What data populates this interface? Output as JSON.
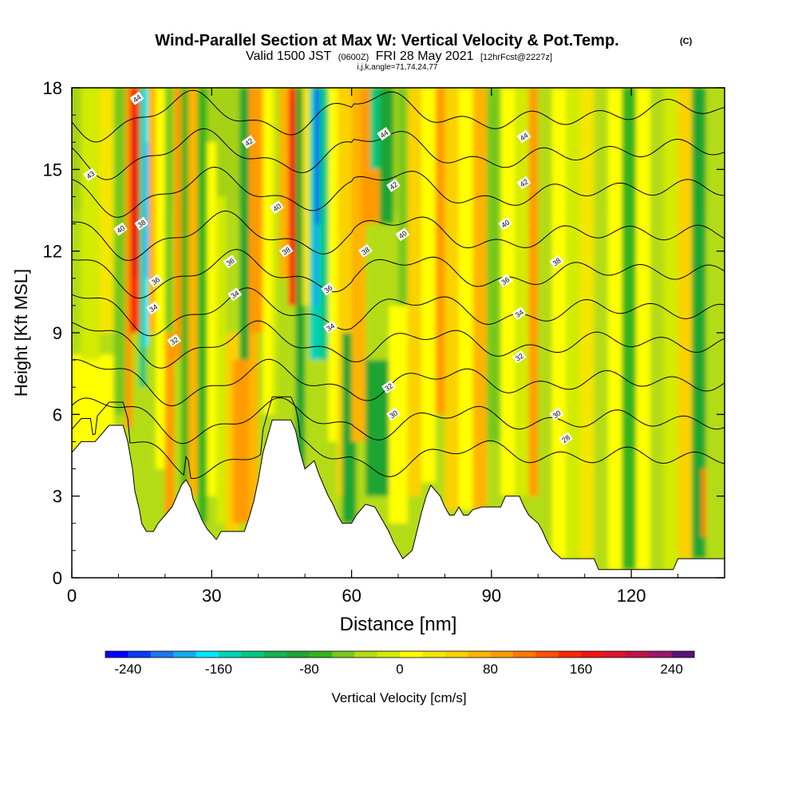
{
  "chart_data": {
    "type": "heatmap",
    "title": "Wind-Parallel Section at Max W: Vertical Velocity & Pot.Temp.",
    "title_mark": "(C)",
    "subtitle": {
      "valid": "Valid 1500 JST",
      "utc": "(0600Z)",
      "date": "FRI 28 May 2021",
      "fcst": "[12hrFcst@2227z]"
    },
    "info": "i,j,k,angle=71,74,24,77",
    "xlabel": "Distance [nm]",
    "ylabel": "Height [Kft MSL]",
    "x_ticks": [
      "0",
      "30",
      "60",
      "90",
      "120"
    ],
    "y_ticks": [
      "0",
      "3",
      "6",
      "9",
      "12",
      "15",
      "18"
    ],
    "xlim": [
      0,
      140
    ],
    "ylim": [
      0,
      18
    ],
    "colorbar": {
      "label": "Vertical Velocity [cm/s]",
      "ticks": [
        "-240",
        "-160",
        "-80",
        "0",
        "80",
        "160",
        "240"
      ],
      "range": [
        -260,
        260
      ],
      "colors": [
        "#0000ff",
        "#0a3cf5",
        "#1a78f0",
        "#14aaf0",
        "#00e6ff",
        "#00d2b4",
        "#00c87d",
        "#14b450",
        "#1ea532",
        "#32b41e",
        "#78c81e",
        "#b4dc14",
        "#d2eb00",
        "#ffff00",
        "#f5e600",
        "#fad200",
        "#ffb400",
        "#ff9b00",
        "#ff7800",
        "#ff5000",
        "#ff2800",
        "#f01414",
        "#dc1432",
        "#be1446",
        "#a0146e",
        "#5a1478"
      ]
    },
    "terrain": [
      {
        "x": 0,
        "h": 4.6
      },
      {
        "x": 2,
        "h": 5.0
      },
      {
        "x": 5,
        "h": 5.0
      },
      {
        "x": 7,
        "h": 5.4
      },
      {
        "x": 8,
        "h": 5.6
      },
      {
        "x": 11,
        "h": 5.6
      },
      {
        "x": 12,
        "h": 5.0
      },
      {
        "x": 13,
        "h": 4.0
      },
      {
        "x": 13.5,
        "h": 3.2
      },
      {
        "x": 14.5,
        "h": 2.5
      },
      {
        "x": 15,
        "h": 2.0
      },
      {
        "x": 16,
        "h": 1.7
      },
      {
        "x": 17.5,
        "h": 1.7
      },
      {
        "x": 18.5,
        "h": 2.0
      },
      {
        "x": 20,
        "h": 2.3
      },
      {
        "x": 21.5,
        "h": 2.6
      },
      {
        "x": 22.5,
        "h": 3.0
      },
      {
        "x": 23.5,
        "h": 3.4
      },
      {
        "x": 24.5,
        "h": 3.6
      },
      {
        "x": 25.5,
        "h": 3.3
      },
      {
        "x": 26,
        "h": 2.9
      },
      {
        "x": 27,
        "h": 2.5
      },
      {
        "x": 28,
        "h": 2.1
      },
      {
        "x": 29,
        "h": 1.8
      },
      {
        "x": 31,
        "h": 1.4
      },
      {
        "x": 32,
        "h": 1.7
      },
      {
        "x": 37,
        "h": 1.7
      },
      {
        "x": 38,
        "h": 2.2
      },
      {
        "x": 39,
        "h": 2.8
      },
      {
        "x": 40,
        "h": 3.6
      },
      {
        "x": 41,
        "h": 4.6
      },
      {
        "x": 42,
        "h": 5.2
      },
      {
        "x": 43,
        "h": 5.8
      },
      {
        "x": 47,
        "h": 5.8
      },
      {
        "x": 48,
        "h": 5.4
      },
      {
        "x": 49,
        "h": 4.6
      },
      {
        "x": 50,
        "h": 4.0
      },
      {
        "x": 52,
        "h": 4.3
      },
      {
        "x": 53,
        "h": 3.8
      },
      {
        "x": 54,
        "h": 3.4
      },
      {
        "x": 55,
        "h": 3.0
      },
      {
        "x": 56,
        "h": 2.7
      },
      {
        "x": 57,
        "h": 2.3
      },
      {
        "x": 58,
        "h": 2.0
      },
      {
        "x": 60,
        "h": 2.0
      },
      {
        "x": 61,
        "h": 2.3
      },
      {
        "x": 63,
        "h": 2.7
      },
      {
        "x": 65,
        "h": 2.6
      },
      {
        "x": 66,
        "h": 2.3
      },
      {
        "x": 67,
        "h": 2.0
      },
      {
        "x": 68,
        "h": 1.7
      },
      {
        "x": 69,
        "h": 1.3
      },
      {
        "x": 70,
        "h": 1.0
      },
      {
        "x": 71,
        "h": 0.7
      },
      {
        "x": 73,
        "h": 1.0
      },
      {
        "x": 74,
        "h": 1.7
      },
      {
        "x": 75,
        "h": 2.4
      },
      {
        "x": 76,
        "h": 3.0
      },
      {
        "x": 77,
        "h": 3.4
      },
      {
        "x": 78,
        "h": 3.2
      },
      {
        "x": 79,
        "h": 3.0
      },
      {
        "x": 80,
        "h": 2.6
      },
      {
        "x": 81,
        "h": 2.3
      },
      {
        "x": 82,
        "h": 2.3
      },
      {
        "x": 83,
        "h": 2.6
      },
      {
        "x": 84,
        "h": 2.3
      },
      {
        "x": 85,
        "h": 2.3
      },
      {
        "x": 86,
        "h": 2.5
      },
      {
        "x": 88,
        "h": 2.6
      },
      {
        "x": 90,
        "h": 2.6
      },
      {
        "x": 92,
        "h": 2.6
      },
      {
        "x": 93,
        "h": 3.0
      },
      {
        "x": 96,
        "h": 3.0
      },
      {
        "x": 97,
        "h": 2.6
      },
      {
        "x": 98,
        "h": 2.3
      },
      {
        "x": 100,
        "h": 2.0
      },
      {
        "x": 101,
        "h": 1.7
      },
      {
        "x": 102,
        "h": 1.3
      },
      {
        "x": 103,
        "h": 1.0
      },
      {
        "x": 105,
        "h": 0.7
      },
      {
        "x": 112,
        "h": 0.7
      },
      {
        "x": 113,
        "h": 0.3
      },
      {
        "x": 122,
        "h": 0.3
      },
      {
        "x": 129,
        "h": 0.3
      },
      {
        "x": 130,
        "h": 0.7
      },
      {
        "x": 140,
        "h": 0.7
      }
    ],
    "theta_levels": [
      28,
      30,
      32,
      34,
      36,
      38,
      40,
      42,
      44
    ],
    "theta_label_positions": [
      {
        "text": "44",
        "x": 14,
        "y": 17.6
      },
      {
        "text": "44",
        "x": 67,
        "y": 16.3
      },
      {
        "text": "44",
        "x": 97,
        "y": 16.2
      },
      {
        "text": "43",
        "x": 4,
        "y": 14.8
      },
      {
        "text": "42",
        "x": 38,
        "y": 16.0
      },
      {
        "text": "42",
        "x": 69,
        "y": 14.4
      },
      {
        "text": "42",
        "x": 97,
        "y": 14.5
      },
      {
        "text": "40",
        "x": 10.5,
        "y": 12.8
      },
      {
        "text": "38",
        "x": 15,
        "y": 13.0
      },
      {
        "text": "40",
        "x": 44,
        "y": 13.6
      },
      {
        "text": "40",
        "x": 71,
        "y": 12.6
      },
      {
        "text": "40",
        "x": 93,
        "y": 13.0
      },
      {
        "text": "38",
        "x": 46,
        "y": 12.0
      },
      {
        "text": "38",
        "x": 63,
        "y": 12.0
      },
      {
        "text": "38",
        "x": 104,
        "y": 11.6
      },
      {
        "text": "36",
        "x": 34,
        "y": 11.6
      },
      {
        "text": "36",
        "x": 18,
        "y": 10.9
      },
      {
        "text": "36",
        "x": 55,
        "y": 10.6
      },
      {
        "text": "36",
        "x": 93,
        "y": 10.9
      },
      {
        "text": "34",
        "x": 35,
        "y": 10.4
      },
      {
        "text": "34",
        "x": 17.5,
        "y": 9.9
      },
      {
        "text": "34",
        "x": 55.5,
        "y": 9.2
      },
      {
        "text": "34",
        "x": 96,
        "y": 9.7
      },
      {
        "text": "32",
        "x": 22,
        "y": 8.7
      },
      {
        "text": "32",
        "x": 68,
        "y": 7.0
      },
      {
        "text": "32",
        "x": 96,
        "y": 8.1
      },
      {
        "text": "30",
        "x": 69,
        "y": 6.0
      },
      {
        "text": "30",
        "x": 104,
        "y": 6.0
      },
      {
        "text": "28",
        "x": 106,
        "y": 5.1
      }
    ]
  }
}
